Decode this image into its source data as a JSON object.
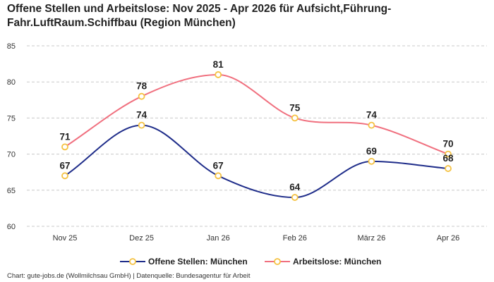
{
  "title": "Offene Stellen und Arbeitslose: Nov 2025 - Apr 2026 für Aufsicht,Führung-Fahr.LuftRaum.Schiffbau (Region München)",
  "footer": "Chart: gute-jobs.de (Wollmilchsau GmbH) | Datenquelle: Bundesagentur für Arbeit",
  "chart_data": {
    "type": "line",
    "title": "Offene Stellen und Arbeitslose: Nov 2025 - Apr 2026 für Aufsicht,Führung-Fahr.LuftRaum.Schiffbau (Region München)",
    "categories": [
      "Nov 25",
      "Dez 25",
      "Jan 26",
      "Feb 26",
      "März 26",
      "Apr 26"
    ],
    "ylim": [
      60,
      85
    ],
    "yticks": [
      60,
      65,
      70,
      75,
      80,
      85
    ],
    "grid": "horizontal-dashed",
    "legend_position": "bottom",
    "series": [
      {
        "name": "Offene Stellen: München",
        "values": [
          67,
          74,
          67,
          64,
          69,
          68
        ],
        "color": "#1f2d8a"
      },
      {
        "name": "Arbeitslose: München",
        "values": [
          71,
          78,
          81,
          75,
          74,
          70
        ],
        "color": "#f0707f"
      }
    ],
    "marker_color": "#f5c242"
  }
}
